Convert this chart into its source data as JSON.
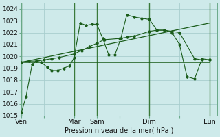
{
  "title": "Pression niveau de la mer( hPa )",
  "background_color": "#ceeaea",
  "grid_color": "#a8cece",
  "line_color": "#1a5c1a",
  "vline_color": "#3a7a3a",
  "ylim": [
    1015,
    1024.5
  ],
  "yticks": [
    1015,
    1016,
    1017,
    1018,
    1019,
    1020,
    1021,
    1022,
    1023,
    1024
  ],
  "xtick_labels": [
    "Ven",
    "",
    "Mar",
    "Sam",
    "",
    "Dim",
    "",
    "Lun"
  ],
  "xtick_positions": [
    0,
    1.5,
    3.5,
    5.0,
    6.5,
    8.5,
    10.5,
    12.5
  ],
  "vlines": [
    0,
    3.5,
    5.0,
    8.5,
    12.5
  ],
  "series1_x": [
    0,
    0.3,
    0.7,
    1.0,
    1.3,
    1.7,
    2.0,
    2.4,
    2.8,
    3.2,
    3.5,
    3.9,
    4.3,
    4.7,
    5.0,
    5.4,
    5.8,
    6.2,
    6.6,
    7.0,
    7.5,
    8.0,
    8.5,
    9.0,
    9.5,
    10.0,
    10.5,
    11.0,
    11.5,
    12.0,
    12.5
  ],
  "series1_y": [
    1015.3,
    1016.6,
    1019.3,
    1019.6,
    1019.5,
    1019.1,
    1018.8,
    1018.8,
    1019.0,
    1019.2,
    1019.9,
    1022.8,
    1022.6,
    1022.7,
    1022.7,
    1021.5,
    1020.1,
    1020.1,
    1021.5,
    1023.5,
    1023.3,
    1023.2,
    1023.1,
    1022.2,
    1022.2,
    1022.0,
    1021.0,
    1018.3,
    1018.1,
    1019.8,
    1019.7
  ],
  "series2_x": [
    0,
    12.5
  ],
  "series2_y": [
    1019.5,
    1019.5
  ],
  "series3_x": [
    0,
    0.5,
    1.0,
    1.5,
    2.0,
    2.5,
    3.5,
    4.0,
    4.5,
    5.0,
    5.5,
    6.5,
    7.0,
    7.5,
    8.5,
    9.0,
    9.5,
    10.0,
    10.5,
    11.5,
    12.0,
    12.5
  ],
  "series3_y": [
    1019.5,
    1019.6,
    1019.6,
    1019.7,
    1019.8,
    1019.9,
    1020.2,
    1020.5,
    1020.8,
    1021.1,
    1021.4,
    1021.5,
    1021.6,
    1021.7,
    1022.1,
    1022.2,
    1022.2,
    1022.1,
    1022.0,
    1019.8,
    1019.7,
    1019.7
  ],
  "series4_x": [
    0,
    12.5
  ],
  "series4_y": [
    1019.5,
    1022.8
  ],
  "xlabel_fontsize": 7,
  "tick_fontsize": 6.5,
  "marker": "D",
  "markersize": 1.8
}
